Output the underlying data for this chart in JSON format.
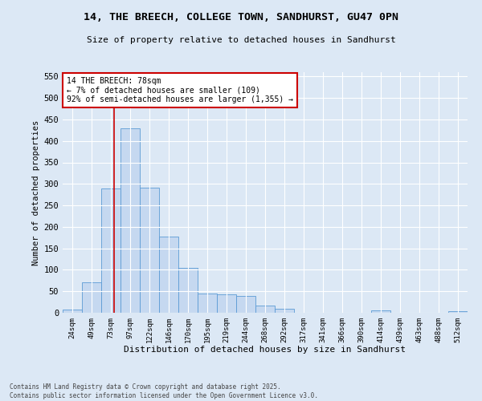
{
  "title_line1": "14, THE BREECH, COLLEGE TOWN, SANDHURST, GU47 0PN",
  "title_line2": "Size of property relative to detached houses in Sandhurst",
  "xlabel": "Distribution of detached houses by size in Sandhurst",
  "ylabel": "Number of detached properties",
  "bar_labels": [
    "24sqm",
    "49sqm",
    "73sqm",
    "97sqm",
    "122sqm",
    "146sqm",
    "170sqm",
    "195sqm",
    "219sqm",
    "244sqm",
    "268sqm",
    "292sqm",
    "317sqm",
    "341sqm",
    "366sqm",
    "390sqm",
    "414sqm",
    "439sqm",
    "463sqm",
    "488sqm",
    "512sqm"
  ],
  "bar_values": [
    8,
    71,
    289,
    430,
    291,
    178,
    105,
    44,
    43,
    39,
    16,
    9,
    0,
    0,
    0,
    0,
    5,
    0,
    0,
    0,
    3
  ],
  "bar_color": "#c5d8f0",
  "bar_edgecolor": "#5b9bd5",
  "vline_x_index": 2.18,
  "annotation_text": "14 THE BREECH: 78sqm\n← 7% of detached houses are smaller (109)\n92% of semi-detached houses are larger (1,355) →",
  "annotation_box_color": "#ffffff",
  "annotation_box_edgecolor": "#cc0000",
  "vline_color": "#cc0000",
  "ylim": [
    0,
    560
  ],
  "yticks": [
    0,
    50,
    100,
    150,
    200,
    250,
    300,
    350,
    400,
    450,
    500,
    550
  ],
  "footer_line1": "Contains HM Land Registry data © Crown copyright and database right 2025.",
  "footer_line2": "Contains public sector information licensed under the Open Government Licence v3.0.",
  "fig_bg_color": "#dce8f5",
  "plot_bg_color": "#dce8f5"
}
